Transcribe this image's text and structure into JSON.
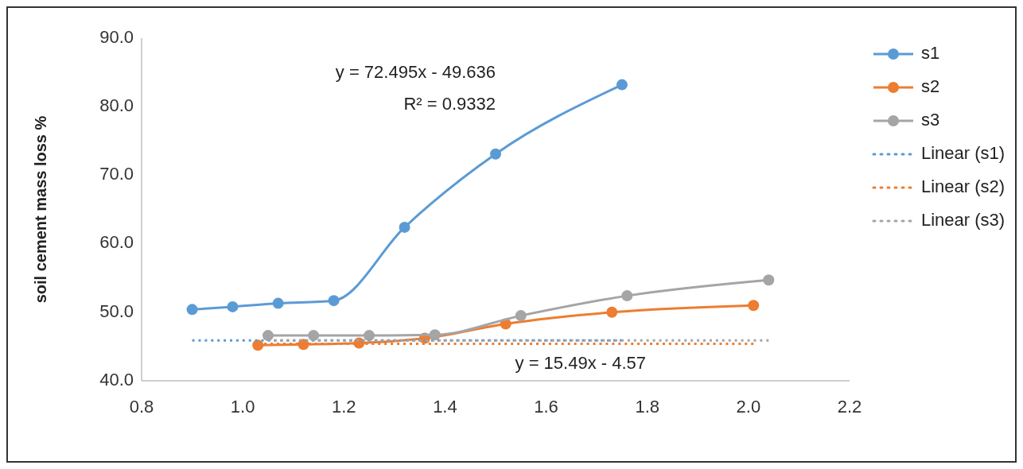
{
  "chart_data": {
    "type": "line",
    "ylabel": "soil cement mass loss %",
    "xlim": [
      0.8,
      2.2
    ],
    "xticks": [
      {
        "value": 0.8,
        "label": "0.8"
      },
      {
        "value": 1.0,
        "label": "1.0"
      },
      {
        "value": 1.2,
        "label": "1.2"
      },
      {
        "value": 1.4,
        "label": "1.4"
      },
      {
        "value": 1.6,
        "label": "1.6"
      },
      {
        "value": 1.8,
        "label": "1.8"
      },
      {
        "value": 2.0,
        "label": "2.0"
      },
      {
        "value": 2.2,
        "label": "2.2"
      }
    ],
    "ylim": [
      40,
      90
    ],
    "yticks": [
      {
        "value": 40,
        "label": "40.0"
      },
      {
        "value": 50,
        "label": "50.0"
      },
      {
        "value": 60,
        "label": "60.0"
      },
      {
        "value": 70,
        "label": "70.0"
      },
      {
        "value": 80,
        "label": "80.0"
      },
      {
        "value": 90,
        "label": "90.0"
      }
    ],
    "grid": false,
    "legend": "top right",
    "marker": "circle",
    "annotations": [
      "y = 72.495x - 49.636",
      "R² = 0.9332",
      "y = 15.49x - 4.57"
    ],
    "series": [
      {
        "name": "s1",
        "color": "#5b9bd5",
        "x": [
          0.9,
          0.98,
          1.07,
          1.18,
          1.32,
          1.5,
          1.75
        ],
        "values": [
          50.4,
          50.8,
          51.3,
          51.7,
          62.4,
          73.1,
          83.2
        ]
      },
      {
        "name": "s2",
        "color": "#ed7d31",
        "x": [
          1.03,
          1.12,
          1.23,
          1.36,
          1.52,
          1.73,
          2.01
        ],
        "values": [
          45.2,
          45.3,
          45.5,
          46.2,
          48.3,
          50.0,
          51.0
        ]
      },
      {
        "name": "s3",
        "color": "#a5a5a5",
        "x": [
          1.05,
          1.14,
          1.25,
          1.38,
          1.55,
          1.76,
          2.04
        ],
        "values": [
          46.6,
          46.6,
          46.6,
          46.7,
          49.5,
          52.4,
          54.7
        ]
      },
      {
        "name": "Linear (s1)",
        "color": "#5b9bd5",
        "marker": "none",
        "line_style": "dotted",
        "x": [
          0.9,
          1.75
        ],
        "values": [
          45.9,
          45.9
        ]
      },
      {
        "name": "Linear (s2)",
        "color": "#ed7d31",
        "marker": "none",
        "line_style": "dotted",
        "x": [
          1.03,
          2.01
        ],
        "values": [
          45.4,
          45.4
        ]
      },
      {
        "name": "Linear (s3)",
        "color": "#a5a5a5",
        "marker": "none",
        "line_style": "dotted",
        "x": [
          1.05,
          2.04
        ],
        "values": [
          45.9,
          45.9
        ]
      }
    ]
  }
}
